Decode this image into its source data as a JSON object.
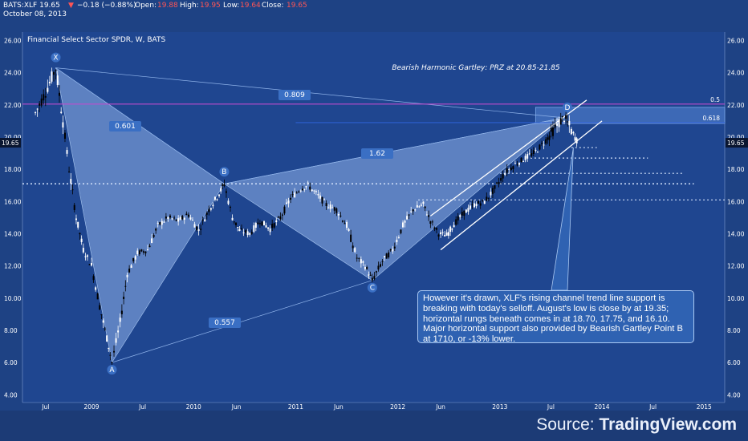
{
  "header": {
    "ticker": "BATS:XLF 19.65",
    "arrow": "▼",
    "change": "−0.18 (−0.88%)",
    "open_label": "Open:",
    "open_value": "19.88",
    "high_label": "High:",
    "high_value": "19.95",
    "low_label": "Low:",
    "low_value": "19.64",
    "close_label": "Close:",
    "close_value": "19.65",
    "date": "October 08, 2013"
  },
  "colors": {
    "background": "#1e4284",
    "accent_down": "#ff5555",
    "pattern_fill": "#8fb3ea",
    "prz_line": "#c04ccc",
    "channel": "#ffffff"
  },
  "chart_data": {
    "type": "candlestick",
    "title": "Bearish Harmonic Gartley: PRZ at 20.85-21.85",
    "series_label": "Financial Select Sector SPDR, W, BATS",
    "last_price": "19.65",
    "ylim": [
      4.0,
      26.0
    ],
    "y_ticks": [
      "26.00",
      "24.00",
      "22.00",
      "20.00",
      "18.00",
      "16.00",
      "14.00",
      "12.00",
      "10.00",
      "8.00",
      "6.00",
      "4.00"
    ],
    "x_ticks": [
      "Jul",
      "2009",
      "Jul",
      "2010",
      "Jun",
      "2011",
      "Jun",
      "2012",
      "Jun",
      "2013",
      "Jul",
      "2014",
      "Jul",
      "2015"
    ],
    "pattern_points": [
      {
        "label": "X",
        "value": 24.3
      },
      {
        "label": "A",
        "value": 6.0
      },
      {
        "label": "B",
        "value": 17.1
      },
      {
        "label": "C",
        "value": 11.1
      },
      {
        "label": "D",
        "value": 21.2
      }
    ],
    "ratios": [
      "0.809",
      "0.601",
      "1.62",
      "0.557"
    ],
    "horizontal_levels": [
      {
        "label": "0.5",
        "value": 22.05
      },
      {
        "label": "0.618",
        "value": 20.9
      },
      {
        "label": "",
        "value": 19.35
      },
      {
        "label": "",
        "value": 18.7
      },
      {
        "label": "",
        "value": 17.75
      },
      {
        "label": "",
        "value": 17.1
      },
      {
        "label": "",
        "value": 16.1
      }
    ],
    "prz_zone": [
      20.85,
      21.85
    ],
    "price_path": [
      [
        2008.45,
        21.5
      ],
      [
        2008.55,
        22.8
      ],
      [
        2008.65,
        24.3
      ],
      [
        2008.72,
        21.0
      ],
      [
        2008.78,
        18.0
      ],
      [
        2008.85,
        15.0
      ],
      [
        2008.92,
        13.0
      ],
      [
        2009.0,
        12.0
      ],
      [
        2009.08,
        9.5
      ],
      [
        2009.15,
        7.5
      ],
      [
        2009.2,
        6.0
      ],
      [
        2009.28,
        8.5
      ],
      [
        2009.35,
        11.5
      ],
      [
        2009.45,
        12.8
      ],
      [
        2009.55,
        13.0
      ],
      [
        2009.65,
        14.5
      ],
      [
        2009.75,
        15.0
      ],
      [
        2009.85,
        14.8
      ],
      [
        2009.95,
        15.2
      ],
      [
        2010.05,
        14.2
      ],
      [
        2010.15,
        15.5
      ],
      [
        2010.25,
        16.5
      ],
      [
        2010.3,
        17.1
      ],
      [
        2010.38,
        15.0
      ],
      [
        2010.45,
        14.2
      ],
      [
        2010.55,
        14.0
      ],
      [
        2010.65,
        14.8
      ],
      [
        2010.75,
        14.3
      ],
      [
        2010.85,
        15.0
      ],
      [
        2010.95,
        16.2
      ],
      [
        2011.05,
        16.8
      ],
      [
        2011.12,
        17.0
      ],
      [
        2011.2,
        16.5
      ],
      [
        2011.3,
        15.8
      ],
      [
        2011.4,
        15.5
      ],
      [
        2011.5,
        14.5
      ],
      [
        2011.6,
        12.5
      ],
      [
        2011.68,
        12.0
      ],
      [
        2011.75,
        11.1
      ],
      [
        2011.85,
        12.3
      ],
      [
        2011.95,
        13.0
      ],
      [
        2012.05,
        14.5
      ],
      [
        2012.15,
        15.5
      ],
      [
        2012.25,
        15.8
      ],
      [
        2012.32,
        14.8
      ],
      [
        2012.4,
        14.0
      ],
      [
        2012.48,
        13.9
      ],
      [
        2012.55,
        14.6
      ],
      [
        2012.65,
        15.3
      ],
      [
        2012.75,
        15.8
      ],
      [
        2012.85,
        16.0
      ],
      [
        2012.95,
        16.8
      ],
      [
        2013.05,
        17.8
      ],
      [
        2013.15,
        18.3
      ],
      [
        2013.25,
        18.7
      ],
      [
        2013.35,
        19.1
      ],
      [
        2013.45,
        19.8
      ],
      [
        2013.52,
        20.4
      ],
      [
        2013.58,
        20.9
      ],
      [
        2013.63,
        21.2
      ],
      [
        2013.68,
        20.7
      ],
      [
        2013.72,
        20.1
      ],
      [
        2013.77,
        19.65
      ]
    ],
    "x_range": [
      2008.3,
      2015.35
    ]
  },
  "annotation": {
    "text": "However it's drawn, XLF's rising channel trend line support is breaking with today's selloff.  August's low is close by at 19.35; horizontal rungs beneath comes in at 18.70, 17.75, and 16.10. Major horizontal support also provided by Bearish Gartley Point B at 1710, or -13% lower."
  },
  "footer": {
    "source_prefix": "Source:",
    "source_name": "TradingView.com"
  }
}
